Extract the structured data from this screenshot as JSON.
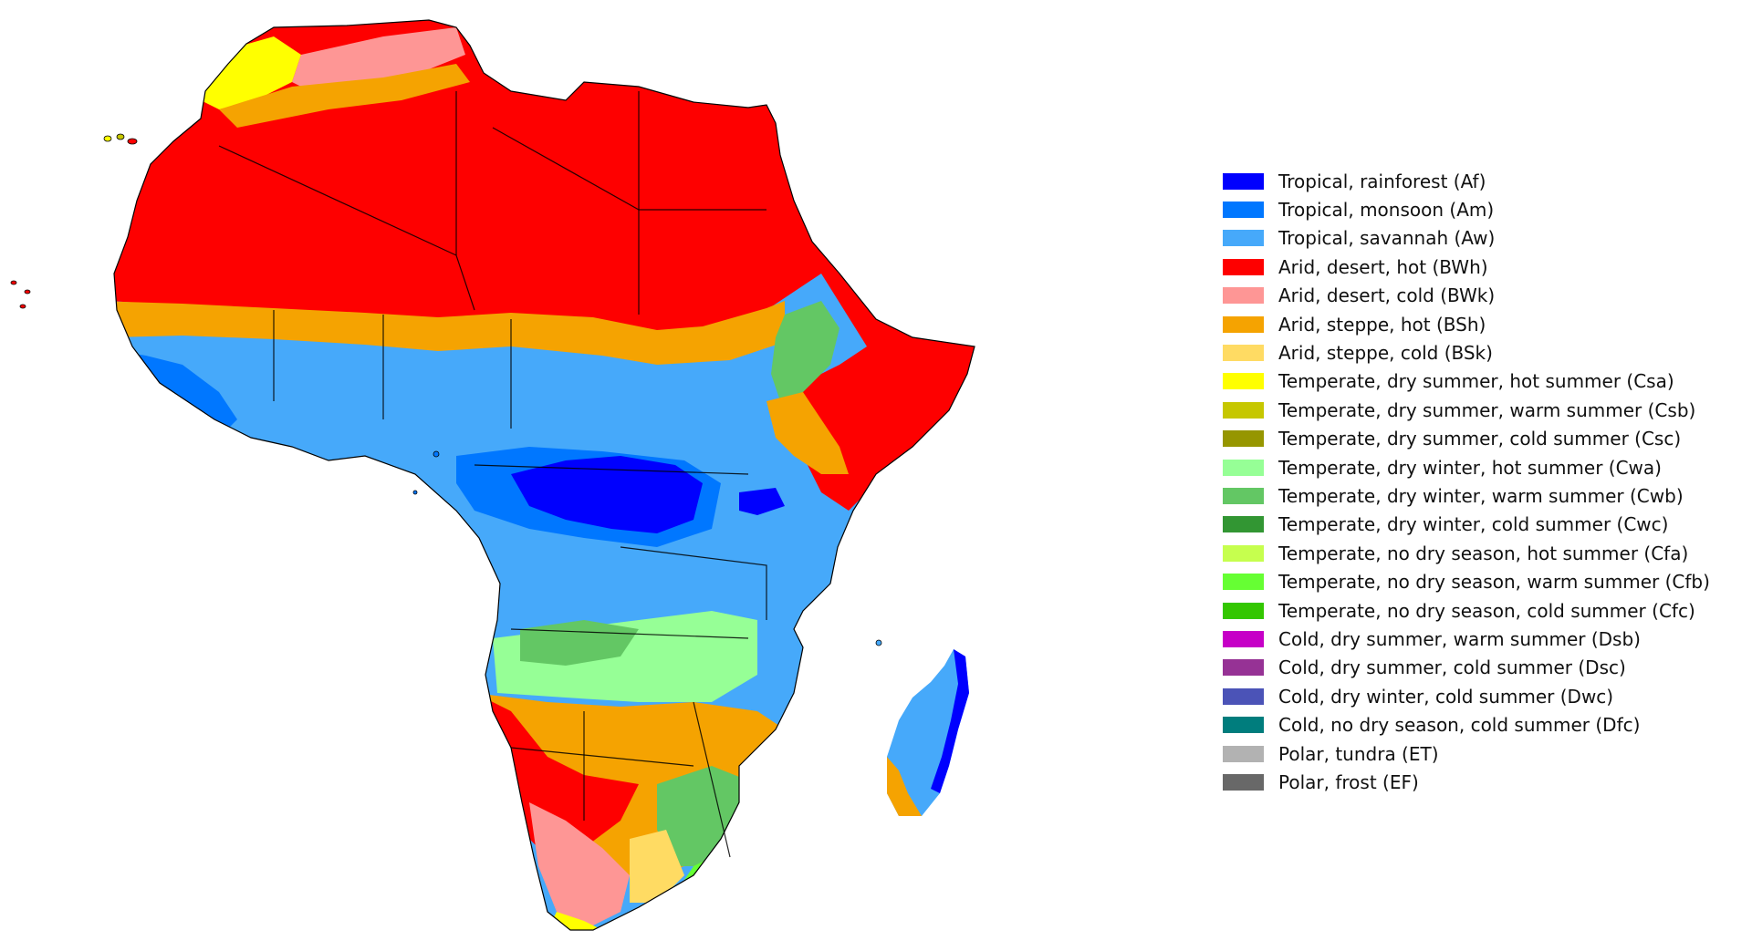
{
  "legend": {
    "items": [
      {
        "label": "Tropical, rainforest (Af)",
        "color": "#0000fe"
      },
      {
        "label": "Tropical, monsoon (Am)",
        "color": "#0077ff"
      },
      {
        "label": "Tropical, savannah (Aw)",
        "color": "#46a9fa"
      },
      {
        "label": "Arid, desert, hot (BWh)",
        "color": "#fe0000"
      },
      {
        "label": "Arid, desert, cold (BWk)",
        "color": "#fe9695"
      },
      {
        "label": "Arid, steppe, hot (BSh)",
        "color": "#f5a301"
      },
      {
        "label": "Arid, steppe, cold (BSk)",
        "color": "#ffdb63"
      },
      {
        "label": "Temperate, dry summer, hot summer (Csa)",
        "color": "#ffff00"
      },
      {
        "label": "Temperate, dry summer, warm summer (Csb)",
        "color": "#c6c700"
      },
      {
        "label": "Temperate, dry summer, cold summer (Csc)",
        "color": "#969600"
      },
      {
        "label": "Temperate, dry winter, hot summer (Cwa)",
        "color": "#96ff96"
      },
      {
        "label": "Temperate, dry winter, warm summer (Cwb)",
        "color": "#63c764"
      },
      {
        "label": "Temperate, dry winter, cold summer (Cwc)",
        "color": "#329633"
      },
      {
        "label": "Temperate, no dry season, hot summer (Cfa)",
        "color": "#c6ff4e"
      },
      {
        "label": "Temperate, no dry season, warm summer (Cfb)",
        "color": "#66ff33"
      },
      {
        "label": "Temperate, no dry season, cold summer (Cfc)",
        "color": "#33c701"
      },
      {
        "label": "Cold, dry summer, warm summer (Dsb)",
        "color": "#c600c7"
      },
      {
        "label": "Cold, dry summer, cold summer (Dsc)",
        "color": "#963295"
      },
      {
        "label": "Cold, dry winter, cold summer (Dwc)",
        "color": "#4b53b7"
      },
      {
        "label": "Cold, no dry season, cold summer (Dfc)",
        "color": "#007d7d"
      },
      {
        "label": "Polar, tundra (ET)",
        "color": "#b2b2b2"
      },
      {
        "label": "Polar, frost (EF)",
        "color": "#686868"
      }
    ]
  }
}
